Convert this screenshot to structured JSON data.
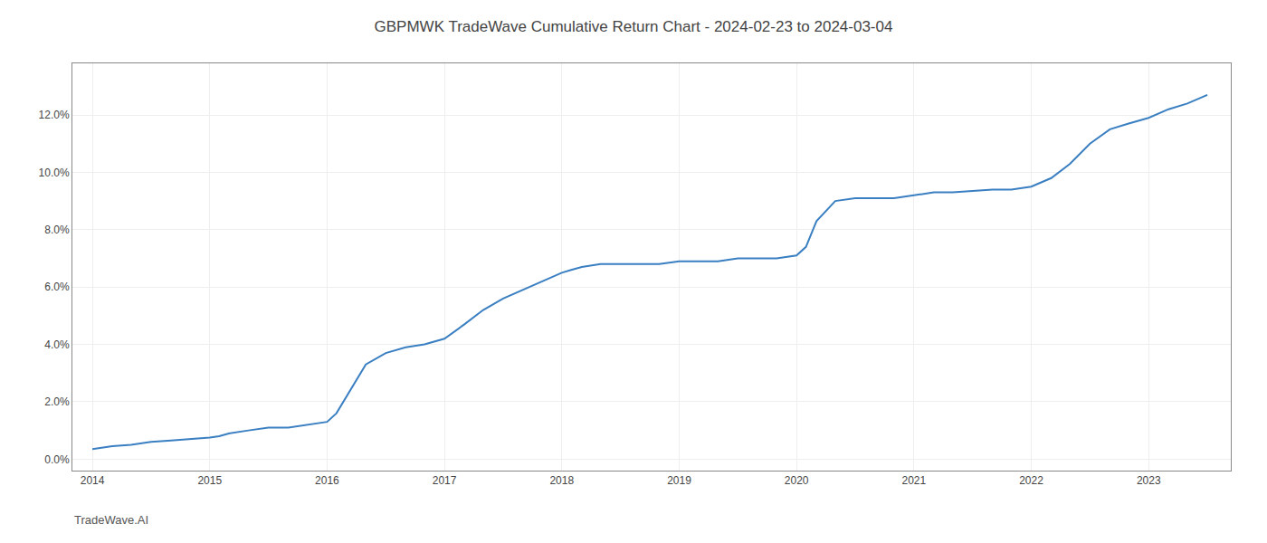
{
  "chart_data": {
    "type": "line",
    "title": "GBPMWK TradeWave Cumulative Return Chart - 2024-02-23 to 2024-03-04",
    "annotations": [
      "TradeWave.AI"
    ],
    "color": "#3a7fc1",
    "grid": true,
    "x": [
      2014.0,
      2014.08,
      2014.17,
      2014.33,
      2014.5,
      2014.67,
      2014.83,
      2015.0,
      2015.08,
      2015.17,
      2015.33,
      2015.5,
      2015.67,
      2015.83,
      2016.0,
      2016.08,
      2016.17,
      2016.33,
      2016.5,
      2016.67,
      2016.83,
      2017.0,
      2017.17,
      2017.33,
      2017.5,
      2017.67,
      2017.83,
      2018.0,
      2018.08,
      2018.17,
      2018.33,
      2018.5,
      2018.67,
      2018.83,
      2019.0,
      2019.17,
      2019.33,
      2019.5,
      2019.67,
      2019.83,
      2020.0,
      2020.08,
      2020.17,
      2020.33,
      2020.5,
      2020.67,
      2020.83,
      2021.0,
      2021.17,
      2021.33,
      2021.5,
      2021.67,
      2021.83,
      2022.0,
      2022.17,
      2022.33,
      2022.5,
      2022.67,
      2022.83,
      2023.0,
      2023.17,
      2023.33,
      2023.5
    ],
    "values": [
      0.0035,
      0.004,
      0.0045,
      0.005,
      0.006,
      0.0065,
      0.007,
      0.0075,
      0.008,
      0.009,
      0.01,
      0.011,
      0.011,
      0.012,
      0.013,
      0.016,
      0.022,
      0.033,
      0.037,
      0.039,
      0.04,
      0.042,
      0.047,
      0.052,
      0.056,
      0.059,
      0.062,
      0.065,
      0.066,
      0.067,
      0.068,
      0.068,
      0.068,
      0.068,
      0.069,
      0.069,
      0.069,
      0.07,
      0.07,
      0.07,
      0.071,
      0.074,
      0.083,
      0.09,
      0.091,
      0.091,
      0.091,
      0.092,
      0.093,
      0.093,
      0.0935,
      0.094,
      0.094,
      0.095,
      0.098,
      0.103,
      0.11,
      0.115,
      0.117,
      0.119,
      0.122,
      0.124,
      0.127
    ],
    "xlim": [
      2013.83,
      2023.7
    ],
    "xticks": [
      2014,
      2015,
      2016,
      2017,
      2018,
      2019,
      2020,
      2021,
      2022,
      2023
    ],
    "ylim": [
      -0.004,
      0.138
    ],
    "yticks": [
      {
        "value": 0.0,
        "label": "0.0%"
      },
      {
        "value": 0.02,
        "label": "2.0%"
      },
      {
        "value": 0.04,
        "label": "4.0%"
      },
      {
        "value": 0.06,
        "label": "6.0%"
      },
      {
        "value": 0.08,
        "label": "8.0%"
      },
      {
        "value": 0.1,
        "label": "10.0%"
      },
      {
        "value": 0.12,
        "label": "12.0%"
      }
    ]
  }
}
